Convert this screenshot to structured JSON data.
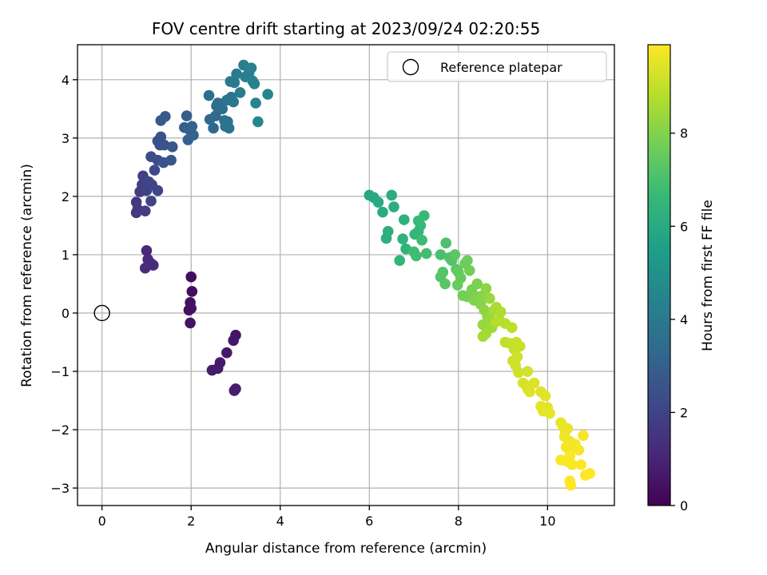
{
  "chart_data": {
    "type": "scatter",
    "title": "FOV centre drift starting at 2023/09/24 02:20:55",
    "xlabel": "Angular distance from reference (arcmin)",
    "ylabel": "Rotation from reference (arcmin)",
    "xlim": [
      -0.55,
      11.5
    ],
    "ylim": [
      -3.3,
      4.6
    ],
    "xticks": [
      0,
      2,
      4,
      6,
      8,
      10
    ],
    "xtick_labels": [
      "0",
      "2",
      "4",
      "6",
      "8",
      "10"
    ],
    "yticks": [
      -3,
      -2,
      -1,
      0,
      1,
      2,
      3,
      4
    ],
    "ytick_labels": [
      "−3",
      "−2",
      "−1",
      "0",
      "1",
      "2",
      "3",
      "4"
    ],
    "grid": true,
    "legend": {
      "placement": "top-right",
      "entries": [
        "Reference platepar"
      ]
    },
    "reference_point": {
      "x": 0,
      "y": 0
    },
    "colorbar": {
      "label": "Hours from first FF file",
      "colormap": "viridis",
      "range": [
        0,
        9.9
      ],
      "ticks": [
        0,
        2,
        4,
        6,
        8
      ],
      "tick_labels": [
        "0",
        "2",
        "4",
        "6",
        "8"
      ],
      "stops": [
        "#440154",
        "#482878",
        "#3e4989",
        "#31688e",
        "#26828e",
        "#1f9e89",
        "#35b779",
        "#6ece58",
        "#b5de2b",
        "#fde725"
      ]
    },
    "points": [
      {
        "x": 2.0,
        "y": 0.62,
        "c": 0.3
      },
      {
        "x": 2.02,
        "y": 0.37,
        "c": 0.35
      },
      {
        "x": 1.98,
        "y": 0.18,
        "c": 0.4
      },
      {
        "x": 1.95,
        "y": 0.05,
        "c": 0.4
      },
      {
        "x": 2.0,
        "y": 0.08,
        "c": 0.45
      },
      {
        "x": 1.98,
        "y": -0.17,
        "c": 0.5
      },
      {
        "x": 3.0,
        "y": -0.38,
        "c": 0.55
      },
      {
        "x": 2.95,
        "y": -0.47,
        "c": 0.6
      },
      {
        "x": 2.8,
        "y": -0.68,
        "c": 0.65
      },
      {
        "x": 2.65,
        "y": -0.85,
        "c": 0.7
      },
      {
        "x": 2.6,
        "y": -0.95,
        "c": 0.7
      },
      {
        "x": 2.47,
        "y": -0.98,
        "c": 0.75
      },
      {
        "x": 3.0,
        "y": -1.3,
        "c": 0.8
      },
      {
        "x": 2.97,
        "y": -1.33,
        "c": 0.8
      },
      {
        "x": 1.0,
        "y": 1.07,
        "c": 1.1
      },
      {
        "x": 1.03,
        "y": 0.92,
        "c": 1.15
      },
      {
        "x": 1.1,
        "y": 0.85,
        "c": 1.2
      },
      {
        "x": 1.15,
        "y": 0.82,
        "c": 1.2
      },
      {
        "x": 0.97,
        "y": 0.77,
        "c": 1.25
      },
      {
        "x": 0.77,
        "y": 1.9,
        "c": 1.6
      },
      {
        "x": 0.77,
        "y": 1.72,
        "c": 1.65
      },
      {
        "x": 0.8,
        "y": 1.78,
        "c": 1.7
      },
      {
        "x": 0.97,
        "y": 1.75,
        "c": 1.75
      },
      {
        "x": 0.85,
        "y": 2.08,
        "c": 1.8
      },
      {
        "x": 0.9,
        "y": 2.2,
        "c": 1.85
      },
      {
        "x": 0.92,
        "y": 2.35,
        "c": 1.9
      },
      {
        "x": 1.0,
        "y": 2.1,
        "c": 1.95
      },
      {
        "x": 1.1,
        "y": 1.92,
        "c": 2.0
      },
      {
        "x": 1.05,
        "y": 2.25,
        "c": 2.05
      },
      {
        "x": 1.12,
        "y": 2.2,
        "c": 2.1
      },
      {
        "x": 1.25,
        "y": 2.1,
        "c": 2.15
      },
      {
        "x": 1.18,
        "y": 2.45,
        "c": 2.2
      },
      {
        "x": 1.25,
        "y": 2.62,
        "c": 2.3
      },
      {
        "x": 1.1,
        "y": 2.68,
        "c": 2.35
      },
      {
        "x": 1.3,
        "y": 2.88,
        "c": 2.4
      },
      {
        "x": 1.25,
        "y": 2.95,
        "c": 2.45
      },
      {
        "x": 1.32,
        "y": 3.02,
        "c": 2.5
      },
      {
        "x": 1.4,
        "y": 2.88,
        "c": 2.55
      },
      {
        "x": 1.38,
        "y": 2.58,
        "c": 2.6
      },
      {
        "x": 1.55,
        "y": 2.62,
        "c": 2.65
      },
      {
        "x": 1.58,
        "y": 2.85,
        "c": 2.7
      },
      {
        "x": 1.32,
        "y": 3.3,
        "c": 2.75
      },
      {
        "x": 1.42,
        "y": 3.37,
        "c": 2.8
      },
      {
        "x": 1.85,
        "y": 3.18,
        "c": 2.9
      },
      {
        "x": 1.9,
        "y": 3.38,
        "c": 2.95
      },
      {
        "x": 1.95,
        "y": 3.15,
        "c": 3.0
      },
      {
        "x": 2.02,
        "y": 3.2,
        "c": 3.05
      },
      {
        "x": 1.93,
        "y": 2.97,
        "c": 3.1
      },
      {
        "x": 2.05,
        "y": 3.05,
        "c": 3.15
      },
      {
        "x": 2.42,
        "y": 3.32,
        "c": 3.3
      },
      {
        "x": 2.5,
        "y": 3.17,
        "c": 3.35
      },
      {
        "x": 2.55,
        "y": 3.38,
        "c": 3.4
      },
      {
        "x": 2.57,
        "y": 3.55,
        "c": 3.45
      },
      {
        "x": 2.4,
        "y": 3.73,
        "c": 3.5
      },
      {
        "x": 2.6,
        "y": 3.6,
        "c": 3.55
      },
      {
        "x": 2.7,
        "y": 3.5,
        "c": 3.6
      },
      {
        "x": 2.75,
        "y": 3.3,
        "c": 3.65
      },
      {
        "x": 2.77,
        "y": 3.2,
        "c": 3.7
      },
      {
        "x": 2.85,
        "y": 3.17,
        "c": 3.75
      },
      {
        "x": 2.82,
        "y": 3.28,
        "c": 3.8
      },
      {
        "x": 2.8,
        "y": 3.65,
        "c": 3.85
      },
      {
        "x": 2.9,
        "y": 3.7,
        "c": 3.9
      },
      {
        "x": 2.95,
        "y": 3.62,
        "c": 3.95
      },
      {
        "x": 2.88,
        "y": 3.97,
        "c": 4.0
      },
      {
        "x": 2.97,
        "y": 3.95,
        "c": 4.05
      },
      {
        "x": 3.02,
        "y": 4.1,
        "c": 4.1
      },
      {
        "x": 3.1,
        "y": 3.78,
        "c": 4.15
      },
      {
        "x": 3.18,
        "y": 4.25,
        "c": 4.2
      },
      {
        "x": 3.22,
        "y": 4.05,
        "c": 4.25
      },
      {
        "x": 3.3,
        "y": 4.12,
        "c": 4.3
      },
      {
        "x": 3.35,
        "y": 4.2,
        "c": 4.35
      },
      {
        "x": 3.38,
        "y": 3.98,
        "c": 4.4
      },
      {
        "x": 3.42,
        "y": 3.93,
        "c": 4.45
      },
      {
        "x": 3.45,
        "y": 3.6,
        "c": 4.5
      },
      {
        "x": 3.5,
        "y": 3.28,
        "c": 4.55
      },
      {
        "x": 3.72,
        "y": 3.75,
        "c": 4.6
      },
      {
        "x": 6.0,
        "y": 2.02,
        "c": 5.9
      },
      {
        "x": 6.1,
        "y": 1.98,
        "c": 5.95
      },
      {
        "x": 6.2,
        "y": 1.9,
        "c": 6.0
      },
      {
        "x": 6.3,
        "y": 1.73,
        "c": 6.05
      },
      {
        "x": 6.5,
        "y": 2.02,
        "c": 6.1
      },
      {
        "x": 6.55,
        "y": 1.82,
        "c": 6.15
      },
      {
        "x": 6.42,
        "y": 1.4,
        "c": 6.2
      },
      {
        "x": 6.38,
        "y": 1.28,
        "c": 6.25
      },
      {
        "x": 6.78,
        "y": 1.6,
        "c": 6.3
      },
      {
        "x": 6.75,
        "y": 1.27,
        "c": 6.35
      },
      {
        "x": 6.82,
        "y": 1.1,
        "c": 6.4
      },
      {
        "x": 6.68,
        "y": 0.9,
        "c": 6.45
      },
      {
        "x": 7.02,
        "y": 1.35,
        "c": 6.5
      },
      {
        "x": 7.1,
        "y": 1.4,
        "c": 6.55
      },
      {
        "x": 7.15,
        "y": 1.5,
        "c": 6.6
      },
      {
        "x": 7.1,
        "y": 1.58,
        "c": 6.65
      },
      {
        "x": 7.23,
        "y": 1.67,
        "c": 6.7
      },
      {
        "x": 7.18,
        "y": 1.25,
        "c": 6.75
      },
      {
        "x": 7.0,
        "y": 1.05,
        "c": 6.8
      },
      {
        "x": 7.05,
        "y": 0.98,
        "c": 6.85
      },
      {
        "x": 7.28,
        "y": 1.02,
        "c": 6.9
      },
      {
        "x": 7.6,
        "y": 1.0,
        "c": 7.0
      },
      {
        "x": 7.72,
        "y": 1.2,
        "c": 7.05
      },
      {
        "x": 7.8,
        "y": 0.95,
        "c": 7.1
      },
      {
        "x": 7.85,
        "y": 0.9,
        "c": 7.15
      },
      {
        "x": 7.65,
        "y": 0.7,
        "c": 7.2
      },
      {
        "x": 7.6,
        "y": 0.62,
        "c": 7.25
      },
      {
        "x": 7.7,
        "y": 0.5,
        "c": 7.3
      },
      {
        "x": 7.92,
        "y": 1.0,
        "c": 7.35
      },
      {
        "x": 7.95,
        "y": 0.75,
        "c": 7.4
      },
      {
        "x": 8.0,
        "y": 0.7,
        "c": 7.45
      },
      {
        "x": 8.05,
        "y": 0.6,
        "c": 7.5
      },
      {
        "x": 7.98,
        "y": 0.48,
        "c": 7.55
      },
      {
        "x": 8.15,
        "y": 0.85,
        "c": 7.6
      },
      {
        "x": 8.2,
        "y": 0.9,
        "c": 7.65
      },
      {
        "x": 8.25,
        "y": 0.73,
        "c": 7.7
      },
      {
        "x": 8.1,
        "y": 0.3,
        "c": 7.75
      },
      {
        "x": 8.2,
        "y": 0.28,
        "c": 7.8
      },
      {
        "x": 8.3,
        "y": 0.4,
        "c": 7.85
      },
      {
        "x": 8.42,
        "y": 0.5,
        "c": 7.9
      },
      {
        "x": 8.35,
        "y": 0.22,
        "c": 7.95
      },
      {
        "x": 8.45,
        "y": 0.28,
        "c": 8.0
      },
      {
        "x": 8.5,
        "y": 0.15,
        "c": 8.05
      },
      {
        "x": 8.55,
        "y": 0.3,
        "c": 8.1
      },
      {
        "x": 8.62,
        "y": 0.42,
        "c": 8.15
      },
      {
        "x": 8.58,
        "y": 0.05,
        "c": 8.2
      },
      {
        "x": 8.65,
        "y": -0.05,
        "c": 8.25
      },
      {
        "x": 8.55,
        "y": -0.2,
        "c": 8.3
      },
      {
        "x": 8.7,
        "y": 0.25,
        "c": 8.35
      },
      {
        "x": 8.72,
        "y": -0.1,
        "c": 8.4
      },
      {
        "x": 8.75,
        "y": -0.25,
        "c": 8.45
      },
      {
        "x": 8.55,
        "y": -0.4,
        "c": 8.5
      },
      {
        "x": 8.62,
        "y": -0.35,
        "c": 8.55
      },
      {
        "x": 8.8,
        "y": 0.05,
        "c": 8.6
      },
      {
        "x": 8.85,
        "y": 0.1,
        "c": 8.65
      },
      {
        "x": 8.95,
        "y": 0.02,
        "c": 8.7
      },
      {
        "x": 8.92,
        "y": -0.12,
        "c": 8.75
      },
      {
        "x": 8.85,
        "y": -0.15,
        "c": 8.8
      },
      {
        "x": 9.05,
        "y": -0.18,
        "c": 8.85
      },
      {
        "x": 9.2,
        "y": -0.25,
        "c": 8.9
      },
      {
        "x": 9.05,
        "y": -0.5,
        "c": 8.95
      },
      {
        "x": 9.15,
        "y": -0.52,
        "c": 9.0
      },
      {
        "x": 9.25,
        "y": -0.62,
        "c": 9.05
      },
      {
        "x": 9.3,
        "y": -0.5,
        "c": 9.1
      },
      {
        "x": 9.38,
        "y": -0.57,
        "c": 9.1
      },
      {
        "x": 9.22,
        "y": -0.82,
        "c": 9.15
      },
      {
        "x": 9.32,
        "y": -0.75,
        "c": 9.15
      },
      {
        "x": 9.28,
        "y": -0.9,
        "c": 9.2
      },
      {
        "x": 9.35,
        "y": -1.02,
        "c": 9.2
      },
      {
        "x": 9.55,
        "y": -1.0,
        "c": 9.25
      },
      {
        "x": 9.45,
        "y": -1.2,
        "c": 9.3
      },
      {
        "x": 9.55,
        "y": -1.3,
        "c": 9.3
      },
      {
        "x": 9.6,
        "y": -1.25,
        "c": 9.35
      },
      {
        "x": 9.7,
        "y": -1.2,
        "c": 9.4
      },
      {
        "x": 9.6,
        "y": -1.35,
        "c": 9.4
      },
      {
        "x": 9.85,
        "y": -1.35,
        "c": 9.45
      },
      {
        "x": 9.95,
        "y": -1.42,
        "c": 9.45
      },
      {
        "x": 9.85,
        "y": -1.6,
        "c": 9.5
      },
      {
        "x": 9.9,
        "y": -1.68,
        "c": 9.5
      },
      {
        "x": 10.0,
        "y": -1.62,
        "c": 9.55
      },
      {
        "x": 10.05,
        "y": -1.72,
        "c": 9.55
      },
      {
        "x": 10.3,
        "y": -1.88,
        "c": 9.6
      },
      {
        "x": 10.35,
        "y": -1.95,
        "c": 9.6
      },
      {
        "x": 10.4,
        "y": -2.02,
        "c": 9.65
      },
      {
        "x": 10.45,
        "y": -1.98,
        "c": 9.65
      },
      {
        "x": 10.38,
        "y": -2.12,
        "c": 9.7
      },
      {
        "x": 10.5,
        "y": -2.2,
        "c": 9.7
      },
      {
        "x": 10.42,
        "y": -2.3,
        "c": 9.75
      },
      {
        "x": 10.55,
        "y": -2.32,
        "c": 9.75
      },
      {
        "x": 10.62,
        "y": -2.25,
        "c": 9.8
      },
      {
        "x": 10.7,
        "y": -2.35,
        "c": 9.8
      },
      {
        "x": 10.8,
        "y": -2.1,
        "c": 9.8
      },
      {
        "x": 10.3,
        "y": -2.52,
        "c": 9.85
      },
      {
        "x": 10.45,
        "y": -2.55,
        "c": 9.85
      },
      {
        "x": 10.5,
        "y": -2.45,
        "c": 9.85
      },
      {
        "x": 10.55,
        "y": -2.6,
        "c": 9.85
      },
      {
        "x": 10.75,
        "y": -2.6,
        "c": 9.9
      },
      {
        "x": 10.85,
        "y": -2.78,
        "c": 9.9
      },
      {
        "x": 10.95,
        "y": -2.75,
        "c": 9.9
      },
      {
        "x": 10.5,
        "y": -2.88,
        "c": 9.9
      },
      {
        "x": 10.52,
        "y": -2.95,
        "c": 9.9
      }
    ]
  }
}
